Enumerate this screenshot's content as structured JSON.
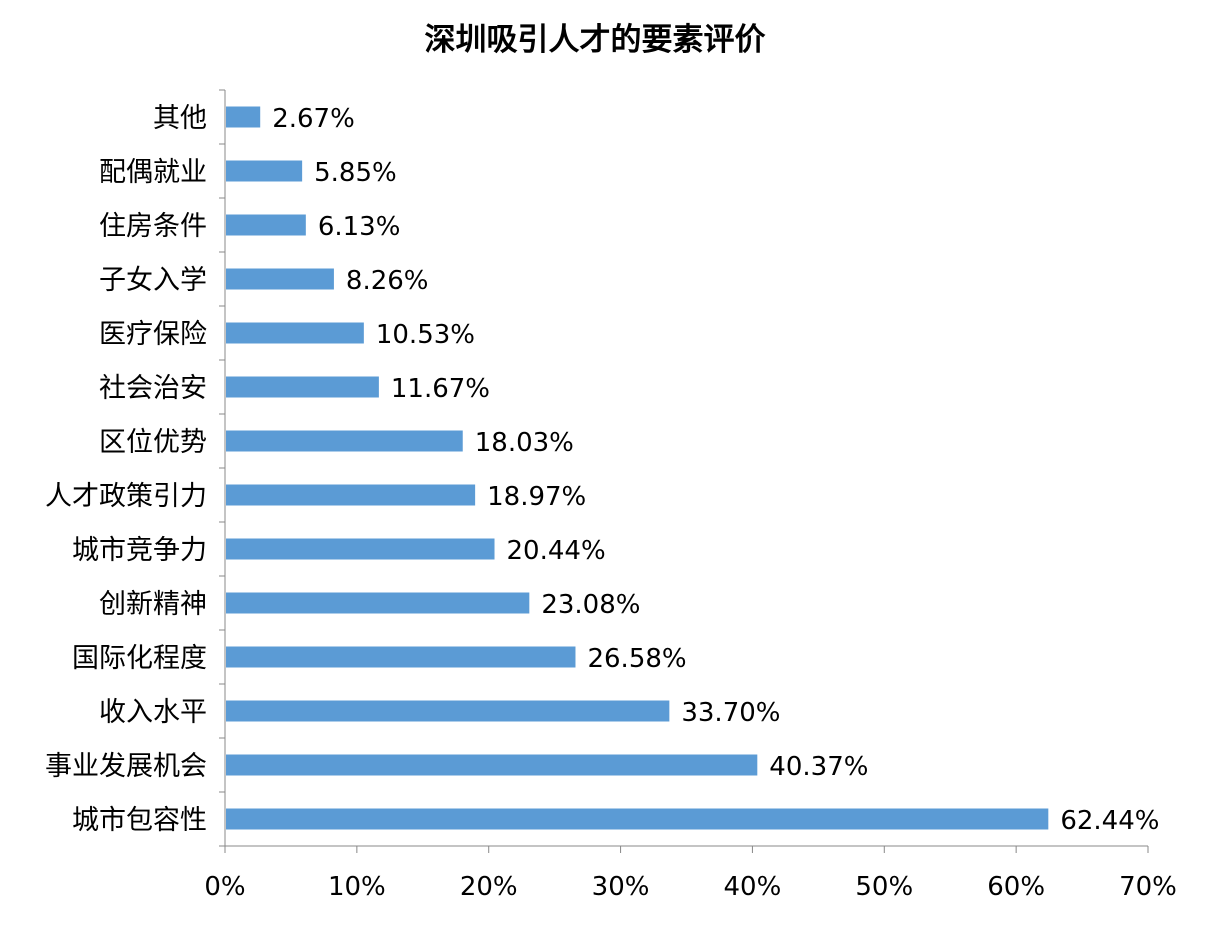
{
  "chart_data": {
    "type": "bar",
    "orientation": "horizontal",
    "title": "深圳吸引人才的要素评价",
    "categories": [
      "其他",
      "配偶就业",
      "住房条件",
      "子女入学",
      "医疗保险",
      "社会治安",
      "区位优势",
      "人才政策引力",
      "城市竞争力",
      "创新精神",
      "国际化程度",
      "收入水平",
      "事业发展机会",
      "城市包容性"
    ],
    "values": [
      2.67,
      5.85,
      6.13,
      8.26,
      10.53,
      11.67,
      18.03,
      18.97,
      20.44,
      23.08,
      26.58,
      33.7,
      40.37,
      62.44
    ],
    "data_labels": [
      "2.67%",
      "5.85%",
      "6.13%",
      "8.26%",
      "10.53%",
      "11.67%",
      "18.03%",
      "18.97%",
      "20.44%",
      "23.08%",
      "26.58%",
      "33.70%",
      "40.37%",
      "62.44%"
    ],
    "xlim": [
      0,
      70
    ],
    "x_ticks": [
      "0%",
      "10%",
      "20%",
      "30%",
      "40%",
      "50%",
      "60%",
      "70%"
    ],
    "xlabel": "",
    "ylabel": "",
    "grid": false,
    "legend": "none",
    "bar_color": "#5B9BD5",
    "axis_color": "#888888",
    "text_color": "#000000"
  }
}
